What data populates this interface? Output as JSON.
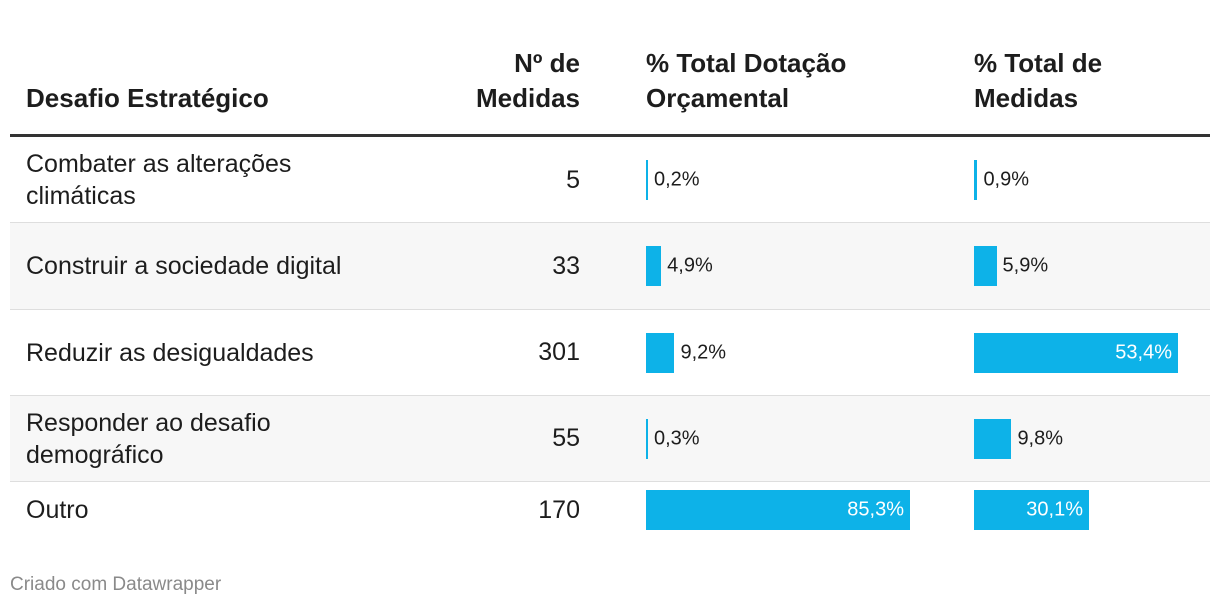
{
  "header": {
    "col1": "Desafio Estratégico",
    "col2_line1": "Nº de",
    "col2_line2": "Medidas",
    "col3_line1": "% Total Dotação",
    "col3_line2": "Orçamental",
    "col4_line1": "% Total de",
    "col4_line2": "Medidas"
  },
  "rows": [
    {
      "label": "Combater as alterações climáticas",
      "count": "5",
      "budget_label": "0,2%",
      "measures_label": "0,9%"
    },
    {
      "label": "Construir a sociedade digital",
      "count": "33",
      "budget_label": "4,9%",
      "measures_label": "5,9%"
    },
    {
      "label": "Reduzir as desigualdades",
      "count": "301",
      "budget_label": "9,2%",
      "measures_label": "53,4%"
    },
    {
      "label": "Responder ao desafio demográfico",
      "count": "55",
      "budget_label": "0,3%",
      "measures_label": "9,8%"
    },
    {
      "label": "Outro",
      "count": "170",
      "budget_label": "85,3%",
      "measures_label": "30,1%"
    }
  ],
  "chart_data": {
    "type": "table",
    "columns": [
      "Desafio Estratégico",
      "Nº de Medidas",
      "% Total Dotação Orçamental",
      "% Total de Medidas"
    ],
    "categories": [
      "Combater as alterações climáticas",
      "Construir a sociedade digital",
      "Reduzir as desigualdades",
      "Responder ao desafio demográfico",
      "Outro"
    ],
    "counts": [
      5,
      33,
      301,
      55,
      170
    ],
    "series": [
      {
        "name": "% Total Dotação Orçamental",
        "values": [
          0.2,
          4.9,
          9.2,
          0.3,
          85.3
        ]
      },
      {
        "name": "% Total de Medidas",
        "values": [
          0.9,
          5.9,
          53.4,
          9.8,
          30.1
        ]
      }
    ],
    "bar_color": "#0db2e8"
  },
  "footer": {
    "credit": "Criado com Datawrapper"
  }
}
